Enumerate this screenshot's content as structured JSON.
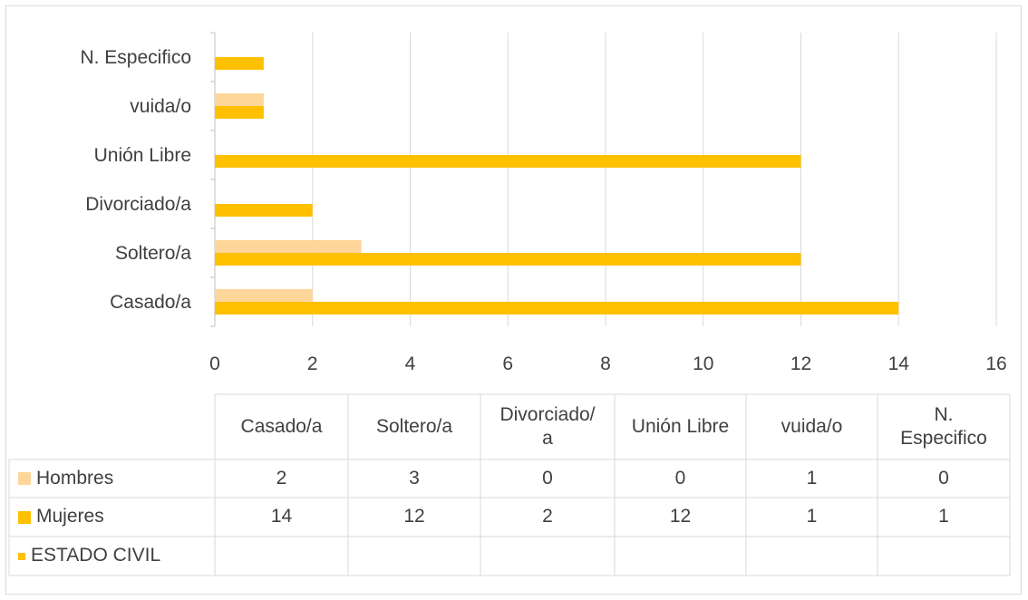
{
  "chart_data": {
    "type": "bar",
    "orientation": "horizontal",
    "title": "",
    "categories": [
      "Casado/a",
      "Soltero/a",
      "Divorciado/a",
      "Unión Libre",
      "vuida/o",
      "N. Especifico"
    ],
    "series": [
      {
        "name": "Hombres",
        "values": [
          2,
          3,
          0,
          0,
          1,
          0
        ],
        "color": "#ffd699"
      },
      {
        "name": "Mujeres",
        "values": [
          14,
          12,
          2,
          12,
          1,
          1
        ],
        "color": "#ffc000"
      },
      {
        "name": "ESTADO CIVIL",
        "values": [
          null,
          null,
          null,
          null,
          null,
          null
        ],
        "color": "#ffc000"
      }
    ],
    "xlim": [
      0,
      16
    ],
    "x_ticks": [
      0,
      2,
      4,
      6,
      8,
      10,
      12,
      14,
      16
    ],
    "grid": true,
    "legend": "data table below chart"
  },
  "table": {
    "headers": [
      "Casado/a",
      "Soltero/a",
      "Divorciado/\na",
      "Unión Libre",
      "vuida/o",
      "N.\nEspecifico"
    ],
    "rows": [
      {
        "label": "Hombres",
        "cells": [
          "2",
          "3",
          "0",
          "0",
          "1",
          "0"
        ]
      },
      {
        "label": "Mujeres",
        "cells": [
          "14",
          "12",
          "2",
          "12",
          "1",
          "1"
        ]
      },
      {
        "label": "ESTADO CIVIL",
        "cells": [
          "",
          "",
          "",
          "",
          "",
          ""
        ]
      }
    ]
  }
}
